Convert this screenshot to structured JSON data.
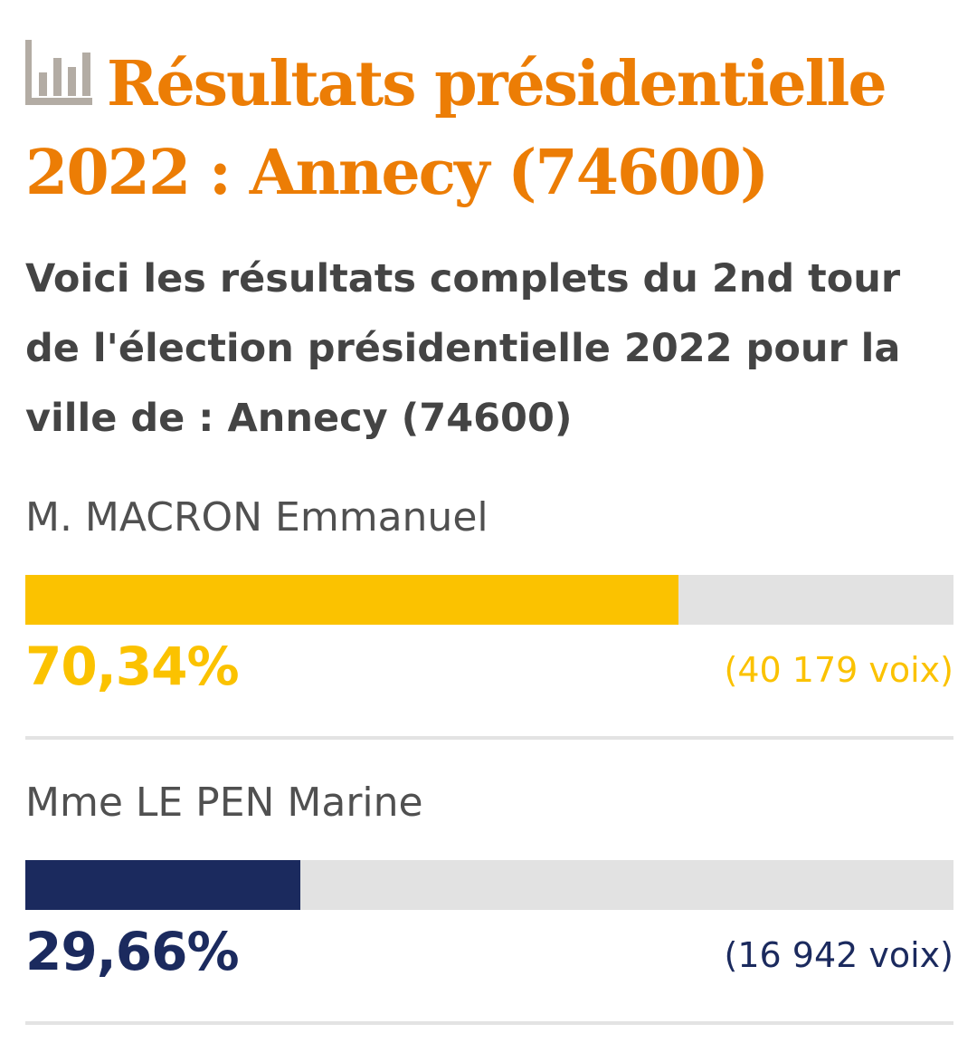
{
  "title": "Résultats présidentielle 2022 : Annecy (74600)",
  "title_icon": "bar-chart-icon",
  "subtitle": "Voici les résultats complets du 2nd tour de l'élection présidentielle 2022 pour la ville de : Annecy (74600)",
  "colors": {
    "title": "#ec7d05",
    "subtitle": "#444444",
    "track": "#e2e2e2"
  },
  "chart_data": {
    "type": "bar",
    "orientation": "horizontal",
    "xlim": [
      0,
      100
    ],
    "categories": [
      "M. MACRON Emmanuel",
      "Mme LE PEN Marine"
    ],
    "values": [
      70.34,
      29.66
    ],
    "series": [
      {
        "name": "M. MACRON Emmanuel",
        "percent_label": "70,34%",
        "votes_label": "(40 179 voix)",
        "value": 70.34,
        "votes": 40179,
        "color": "#fbc200"
      },
      {
        "name": "Mme LE PEN Marine",
        "percent_label": "29,66%",
        "votes_label": "(16 942 voix)",
        "value": 29.66,
        "votes": 16942,
        "color": "#1b2a5e"
      }
    ]
  }
}
